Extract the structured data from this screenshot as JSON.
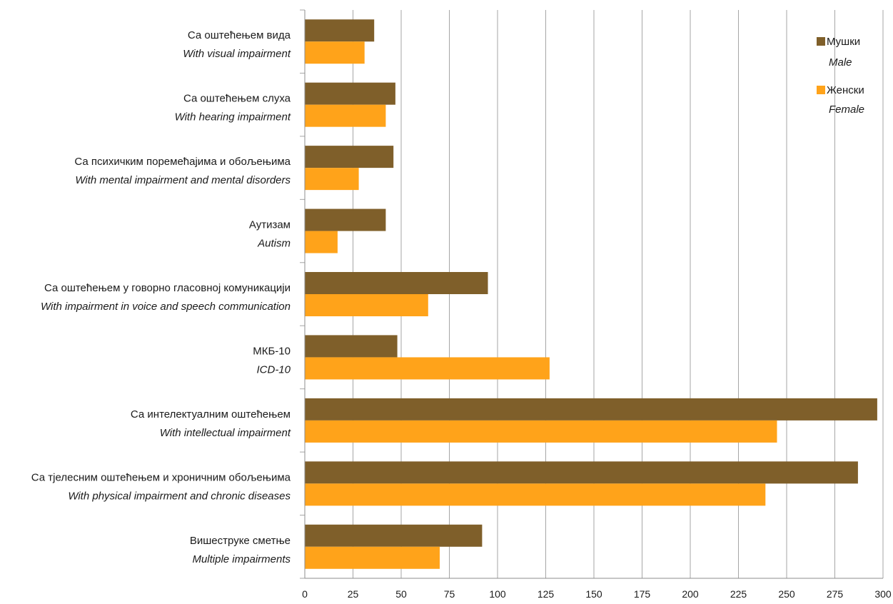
{
  "chart_data": {
    "type": "bar",
    "orientation": "horizontal",
    "categories": [
      {
        "label": "Са оштећењем вида",
        "label_en": "With visual impairment"
      },
      {
        "label": "Са оштећењем слуха",
        "label_en": "With hearing impairment"
      },
      {
        "label": "Са психичким поремећајима и обољењима",
        "label_en": "With mental impairment and mental disorders"
      },
      {
        "label": "Аутизам",
        "label_en": "Autism"
      },
      {
        "label": "Са оштећењем у говорно гласовној комуникацији",
        "label_en": "With impairment in voice and speech communication"
      },
      {
        "label": "МКБ-10",
        "label_en": "ICD-10"
      },
      {
        "label": "Са интелектуалним оштећењем",
        "label_en": "With intellectual impairment"
      },
      {
        "label": "Са тјелесним оштећењем и хроничним обољењима",
        "label_en": "With physical impairment and chronic diseases"
      },
      {
        "label": "Вишеструке сметње",
        "label_en": "Multiple impairments"
      }
    ],
    "series": [
      {
        "name": "Мушки",
        "name_en": "Male",
        "color": "#7f5f2a",
        "values": [
          36,
          47,
          46,
          42,
          95,
          48,
          297,
          287,
          92
        ]
      },
      {
        "name": "Женски",
        "name_en": "Female",
        "color": "#ffa31a",
        "values": [
          31,
          42,
          28,
          17,
          64,
          127,
          245,
          239,
          70
        ]
      }
    ],
    "xlim": [
      0,
      300
    ],
    "xticks": [
      "0",
      "25",
      "50",
      "75",
      "100",
      "125",
      "150",
      "175",
      "200",
      "225",
      "250",
      "275",
      "300"
    ],
    "grid": true,
    "legend_position": "top-right",
    "gridline_color": "#a6a6a6"
  }
}
